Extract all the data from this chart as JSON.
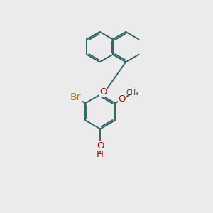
{
  "bg_color": "#ebebeb",
  "bond_color": "#336666",
  "bond_width": 1.4,
  "O_color": "#cc0000",
  "Br_color": "#cc7700",
  "font_size_atom": 8.5,
  "fig_size": [
    3.0,
    3.0
  ],
  "dpi": 100,
  "xlim": [
    0,
    10
  ],
  "ylim": [
    0,
    10
  ]
}
